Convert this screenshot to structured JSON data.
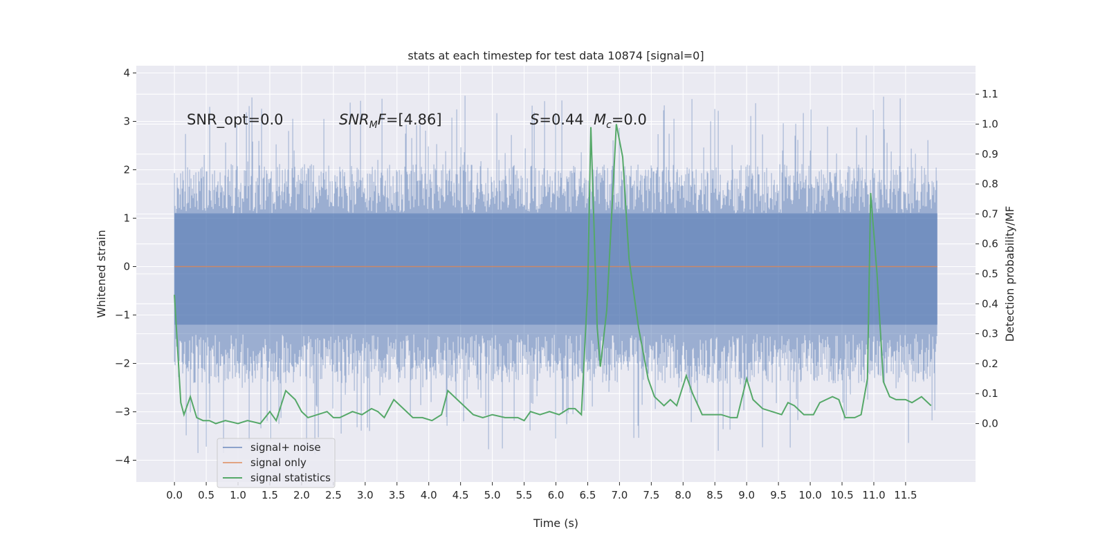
{
  "chart_data": {
    "type": "line",
    "title": "stats at each timestep for test data 10874 [signal=0]",
    "xlabel": "Time (s)",
    "ylabel_left": "Whitened strain",
    "ylabel_right": "Detection probability/MF",
    "xlim": [
      -0.6,
      12.6
    ],
    "ylim_left": [
      -4.45,
      4.15
    ],
    "ylim_right": [
      -0.195,
      1.195
    ],
    "x_ticks": [
      0.0,
      0.5,
      1.0,
      1.5,
      2.0,
      2.5,
      3.0,
      3.5,
      4.0,
      4.5,
      5.0,
      5.5,
      6.0,
      6.5,
      7.0,
      7.5,
      8.0,
      8.5,
      9.0,
      9.5,
      10.0,
      10.5,
      11.0,
      11.5
    ],
    "x_tick_labels": [
      "0.0",
      "0.5",
      "1.0",
      "1.5",
      "2.0",
      "2.5",
      "3.0",
      "3.5",
      "4.0",
      "4.5",
      "5.0",
      "5.5",
      "6.0",
      "6.5",
      "7.0",
      "7.5",
      "8.0",
      "8.5",
      "9.0",
      "9.5",
      "10.0",
      "10.5",
      "11.0",
      "11.5"
    ],
    "y_left_ticks": [
      -4,
      -3,
      -2,
      -1,
      0,
      1,
      2,
      3,
      4
    ],
    "y_left_tick_labels": [
      "−4",
      "−3",
      "−2",
      "−1",
      "0",
      "1",
      "2",
      "3",
      "4"
    ],
    "y_right_ticks": [
      0.0,
      0.1,
      0.2,
      0.3,
      0.4,
      0.5,
      0.6,
      0.7,
      0.8,
      0.9,
      1.0,
      1.1
    ],
    "y_right_tick_labels": [
      "0.0",
      "0.1",
      "0.2",
      "0.3",
      "0.4",
      "0.5",
      "0.6",
      "0.7",
      "0.8",
      "0.9",
      "1.0",
      "1.1"
    ],
    "grid": true,
    "legend_position": "lower-left",
    "annotations": {
      "snr_opt": "SNR_opt=0.0",
      "snr_mf_italic": "SNR",
      "snr_mf_sub": "M",
      "snr_mf_italic2": "F",
      "snr_mf_rest": "=[4.86]",
      "s_italic": "S",
      "s_rest": "=0.44",
      "mc_italic": "M",
      "mc_sub": "c",
      "mc_rest": "=0.0"
    },
    "series": [
      {
        "name": "signal+ noise",
        "axis": "left",
        "color": "#4c72b0",
        "opacity": 0.5,
        "x_range": [
          0.0,
          12.0
        ],
        "core_band": [
          -1.2,
          1.1
        ],
        "typical_band": [
          -2.0,
          1.7
        ],
        "extreme_band": [
          -4.07,
          3.77
        ]
      },
      {
        "name": "signal only",
        "axis": "left",
        "color": "#dd8452",
        "x": [
          0.0,
          12.0
        ],
        "y": [
          0.0,
          0.0
        ]
      },
      {
        "name": "signal statistics",
        "axis": "right",
        "color": "#55a868",
        "x": [
          0.0,
          0.1,
          0.15,
          0.25,
          0.35,
          0.45,
          0.55,
          0.65,
          0.8,
          1.0,
          1.15,
          1.35,
          1.5,
          1.6,
          1.75,
          1.9,
          2.0,
          2.1,
          2.25,
          2.4,
          2.5,
          2.6,
          2.8,
          2.95,
          3.1,
          3.2,
          3.3,
          3.45,
          3.6,
          3.75,
          3.9,
          4.05,
          4.2,
          4.3,
          4.4,
          4.55,
          4.7,
          4.85,
          5.0,
          5.2,
          5.4,
          5.5,
          5.6,
          5.75,
          5.9,
          6.05,
          6.2,
          6.3,
          6.4,
          6.5,
          6.55,
          6.65,
          6.7,
          6.8,
          6.95,
          7.05,
          7.15,
          7.3,
          7.45,
          7.55,
          7.7,
          7.8,
          7.9,
          8.05,
          8.15,
          8.3,
          8.45,
          8.6,
          8.75,
          8.85,
          9.0,
          9.1,
          9.25,
          9.4,
          9.55,
          9.65,
          9.75,
          9.9,
          10.05,
          10.15,
          10.25,
          10.35,
          10.45,
          10.55,
          10.7,
          10.8,
          10.9,
          10.95,
          11.05,
          11.15,
          11.25,
          11.35,
          11.5,
          11.6,
          11.75,
          11.9
        ],
        "y": [
          0.43,
          0.07,
          0.03,
          0.09,
          0.02,
          0.01,
          0.01,
          0.0,
          0.01,
          0.0,
          0.01,
          0.0,
          0.04,
          0.01,
          0.11,
          0.08,
          0.04,
          0.02,
          0.03,
          0.04,
          0.02,
          0.02,
          0.04,
          0.03,
          0.05,
          0.04,
          0.02,
          0.08,
          0.05,
          0.02,
          0.02,
          0.01,
          0.03,
          0.11,
          0.09,
          0.06,
          0.03,
          0.02,
          0.03,
          0.02,
          0.02,
          0.01,
          0.04,
          0.03,
          0.04,
          0.03,
          0.05,
          0.05,
          0.03,
          0.45,
          0.99,
          0.32,
          0.19,
          0.38,
          1.0,
          0.89,
          0.55,
          0.32,
          0.15,
          0.09,
          0.06,
          0.08,
          0.06,
          0.16,
          0.1,
          0.03,
          0.03,
          0.03,
          0.02,
          0.02,
          0.15,
          0.08,
          0.05,
          0.04,
          0.03,
          0.07,
          0.06,
          0.03,
          0.03,
          0.07,
          0.08,
          0.09,
          0.08,
          0.02,
          0.02,
          0.03,
          0.15,
          0.77,
          0.5,
          0.14,
          0.09,
          0.08,
          0.08,
          0.07,
          0.09,
          0.06
        ]
      }
    ]
  }
}
